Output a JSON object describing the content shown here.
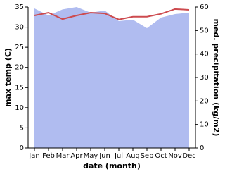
{
  "chart_data": {
    "type": "line-area",
    "x_label": "date (month)",
    "y_label": "max temp (C)",
    "y2_label": "med. precipitation (kg/m2)",
    "categories": [
      "Jan",
      "Feb",
      "Mar",
      "Apr",
      "May",
      "Jun",
      "Jul",
      "Aug",
      "Sep",
      "Oct",
      "Nov",
      "Dec"
    ],
    "series": [
      {
        "name": "max temp",
        "color": "#cd4b4f",
        "values": [
          32.9,
          33.6,
          32,
          32.9,
          33.6,
          33.4,
          31.9,
          32.6,
          32.6,
          33.3,
          34.5,
          34.3
        ]
      },
      {
        "name": "med. precipitation",
        "color": "#b0bcf0",
        "axis": "y2",
        "values": [
          59.4,
          56.4,
          59,
          60,
          57.6,
          58.5,
          54,
          54.6,
          51,
          55.5,
          57,
          57.6
        ]
      }
    ],
    "ylim": [
      0,
      35
    ],
    "yticks": [
      0,
      5,
      10,
      15,
      20,
      25,
      30,
      35
    ],
    "y2lim": [
      0,
      60
    ],
    "y2ticks": [
      0,
      10,
      20,
      30,
      40,
      50,
      60
    ]
  }
}
